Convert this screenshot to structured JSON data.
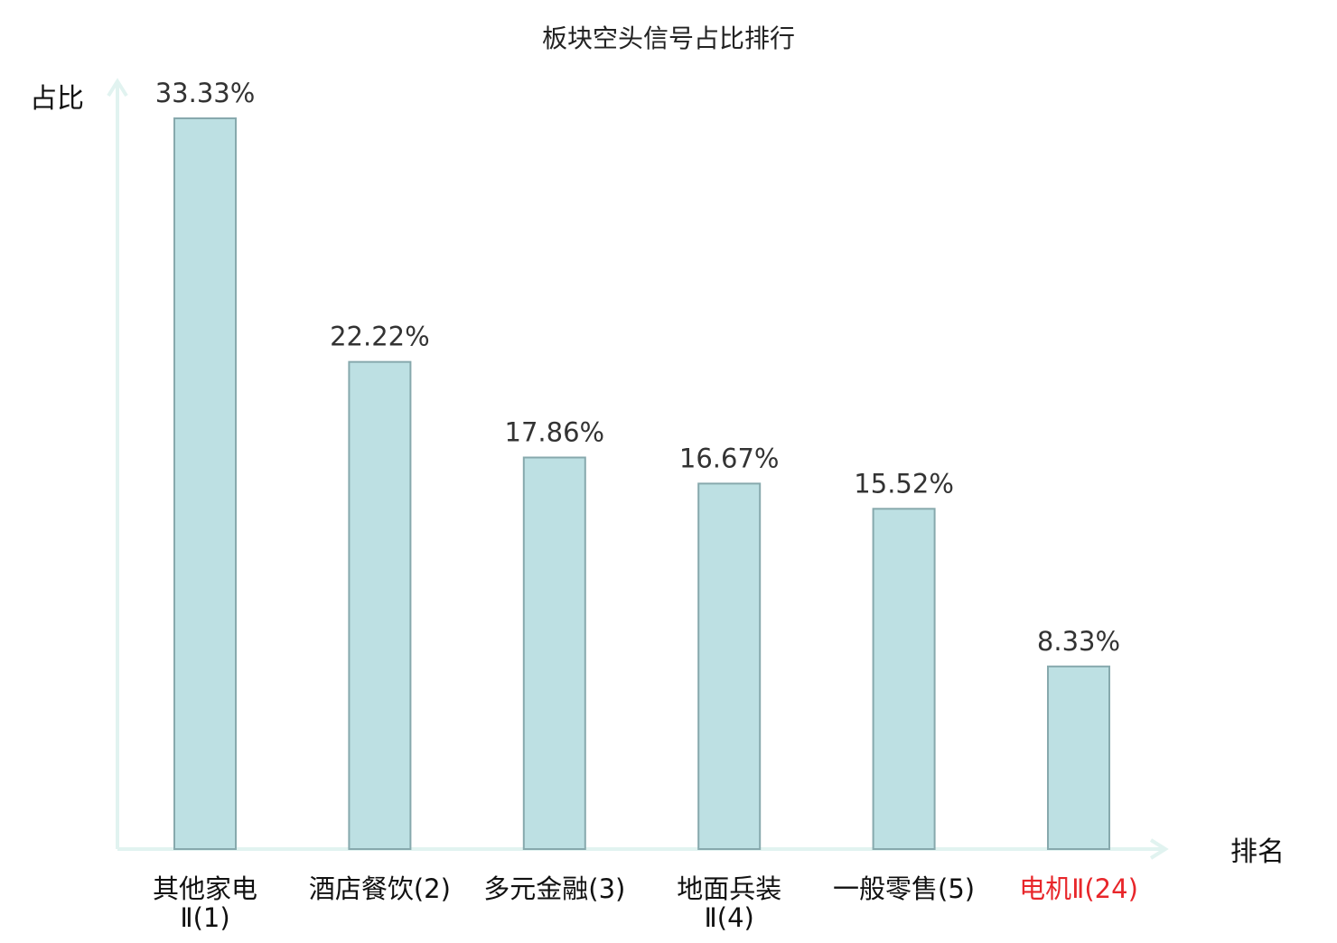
{
  "chart_data": {
    "type": "bar",
    "title": "板块空头信号占比排行",
    "ylabel": "占比",
    "xlabel": "排名",
    "categories": [
      {
        "name_line1": "其他家电",
        "name_line2": "Ⅱ(1)",
        "highlight": false
      },
      {
        "name_line1": "酒店餐饮(2)",
        "name_line2": "",
        "highlight": false
      },
      {
        "name_line1": "多元金融(3)",
        "name_line2": "",
        "highlight": false
      },
      {
        "name_line1": "地面兵装",
        "name_line2": "Ⅱ(4)",
        "highlight": false
      },
      {
        "name_line1": "一般零售(5)",
        "name_line2": "",
        "highlight": false
      },
      {
        "name_line1": "电机Ⅱ(24)",
        "name_line2": "",
        "highlight": true
      }
    ],
    "values": [
      33.33,
      22.22,
      17.86,
      16.67,
      15.52,
      8.33
    ],
    "value_labels": [
      "33.33%",
      "22.22%",
      "17.86%",
      "16.67%",
      "15.52%",
      "8.33%"
    ],
    "ylim": [
      0,
      33.33
    ],
    "grid": false,
    "colors": {
      "bar_fill": "#bde0e3",
      "bar_stroke": "#87a9ad",
      "axis": "#e1f3f0",
      "text": "#333333",
      "highlight_text": "#e8262a"
    }
  }
}
